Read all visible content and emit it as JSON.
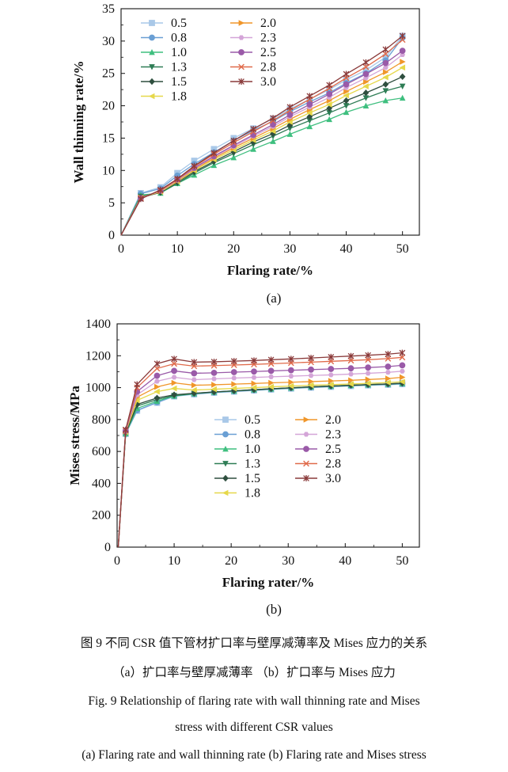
{
  "panel_labels": {
    "a": "(a)",
    "b": "(b)"
  },
  "captions": {
    "cn_title": "图 9   不同 CSR 值下管材扩口率与壁厚减薄率及 Mises 应力的关系",
    "cn_sub": "（a）扩口率与壁厚减薄率    （b）扩口率与 Mises 应力",
    "en_title_1": "Fig. 9   Relationship of flaring rate with wall thinning rate and Mises",
    "en_title_2": "stress with different CSR values",
    "en_sub": "(a) Flaring rate and wall thinning rate    (b) Flaring rate and Mises stress"
  },
  "series_style": [
    {
      "name": "0.5",
      "color": "#a9c8e8",
      "marker": "square"
    },
    {
      "name": "0.8",
      "color": "#6a9fd4",
      "marker": "circle"
    },
    {
      "name": "1.0",
      "color": "#3fbf7f",
      "marker": "triangle-up"
    },
    {
      "name": "1.3",
      "color": "#2e7d55",
      "marker": "triangle-down"
    },
    {
      "name": "1.5",
      "color": "#2f4f3f",
      "marker": "diamond"
    },
    {
      "name": "1.8",
      "color": "#e6d84a",
      "marker": "triangle-left"
    },
    {
      "name": "2.0",
      "color": "#f0962a",
      "marker": "triangle-right"
    },
    {
      "name": "2.3",
      "color": "#d4a5d8",
      "marker": "hexagon"
    },
    {
      "name": "2.5",
      "color": "#9a5aa8",
      "marker": "circle"
    },
    {
      "name": "2.8",
      "color": "#e06a4a",
      "marker": "x"
    },
    {
      "name": "3.0",
      "color": "#8a3a3a",
      "marker": "star"
    }
  ],
  "chart_data": [
    {
      "type": "line",
      "xlabel": "Flaring rate/%",
      "ylabel": "Wall thinning rate/%",
      "xlim": [
        0,
        53
      ],
      "ylim": [
        0,
        35
      ],
      "xticks": [
        0,
        10,
        20,
        30,
        40,
        50
      ],
      "yticks": [
        5,
        10,
        15,
        20,
        25,
        30,
        35
      ],
      "legend_position": "top-left",
      "x": [
        0,
        3.5,
        7,
        10,
        13,
        16.5,
        20,
        23.5,
        27,
        30,
        33.5,
        37,
        40,
        43.5,
        47,
        50
      ],
      "series": [
        {
          "name": "0.5",
          "values": [
            0,
            6.5,
            7.4,
            9.6,
            11.5,
            13.3,
            15.0,
            16.5,
            18.0,
            19.5,
            21.0,
            22.5,
            24.0,
            25.5,
            27.5,
            30.8
          ]
        },
        {
          "name": "0.8",
          "values": [
            0,
            6.4,
            7.2,
            9.2,
            11.0,
            12.8,
            14.6,
            16.2,
            17.6,
            19.1,
            20.6,
            22.0,
            23.5,
            25.0,
            27.0,
            30.5
          ]
        },
        {
          "name": "1.0",
          "values": [
            0,
            6.2,
            6.5,
            8.0,
            9.3,
            10.8,
            12.0,
            13.3,
            14.5,
            15.6,
            16.8,
            17.9,
            19.0,
            20.0,
            20.8,
            21.2
          ]
        },
        {
          "name": "1.3",
          "values": [
            0,
            6.0,
            6.6,
            8.0,
            9.6,
            11.2,
            12.6,
            14.0,
            15.3,
            16.5,
            17.7,
            18.9,
            20.0,
            21.2,
            22.3,
            23.0
          ]
        },
        {
          "name": "1.5",
          "values": [
            0,
            5.8,
            6.6,
            8.2,
            9.8,
            11.4,
            12.9,
            14.4,
            15.7,
            17.0,
            18.3,
            19.6,
            20.8,
            22.0,
            23.3,
            24.5
          ]
        },
        {
          "name": "1.8",
          "values": [
            0,
            5.8,
            6.7,
            8.3,
            10.0,
            11.7,
            13.2,
            14.7,
            16.1,
            17.5,
            18.9,
            20.2,
            21.6,
            23.0,
            24.4,
            25.9
          ]
        },
        {
          "name": "2.0",
          "values": [
            0,
            5.8,
            6.8,
            8.4,
            10.2,
            11.9,
            13.5,
            15.0,
            16.5,
            17.9,
            19.4,
            20.8,
            22.2,
            23.7,
            25.2,
            26.8
          ]
        },
        {
          "name": "2.3",
          "values": [
            0,
            5.8,
            6.8,
            8.5,
            10.3,
            12.1,
            13.7,
            15.3,
            16.8,
            18.3,
            19.8,
            21.3,
            22.8,
            24.3,
            25.9,
            27.9
          ]
        },
        {
          "name": "2.5",
          "values": [
            0,
            5.7,
            6.9,
            8.6,
            10.4,
            12.2,
            13.9,
            15.5,
            17.1,
            18.6,
            20.2,
            21.8,
            23.3,
            24.9,
            26.6,
            28.5
          ]
        },
        {
          "name": "2.8",
          "values": [
            0,
            5.7,
            6.9,
            8.6,
            10.6,
            12.5,
            14.3,
            16.0,
            17.7,
            19.3,
            21.0,
            22.7,
            24.3,
            26.0,
            28.0,
            30.2
          ]
        },
        {
          "name": "3.0",
          "values": [
            0,
            5.6,
            7.0,
            8.7,
            10.7,
            12.7,
            14.6,
            16.4,
            18.1,
            19.8,
            21.5,
            23.2,
            24.9,
            26.7,
            28.7,
            30.8
          ]
        }
      ]
    },
    {
      "type": "line",
      "xlabel": "Flaring rater/%",
      "ylabel": "Mises stress/MPa",
      "xlim": [
        0,
        53
      ],
      "ylim": [
        0,
        1400
      ],
      "xticks": [
        0,
        10,
        20,
        30,
        40,
        50
      ],
      "yticks": [
        200,
        400,
        600,
        800,
        1000,
        1200,
        1400
      ],
      "legend_position": "bottom-middle",
      "x": [
        0.2,
        1.5,
        3.5,
        7,
        10,
        13.5,
        17,
        20.5,
        24,
        27,
        30.5,
        34,
        37.5,
        41,
        44,
        47.5,
        50
      ],
      "series": [
        {
          "name": "0.5",
          "values": [
            0,
            710,
            855,
            905,
            945,
            958,
            968,
            975,
            982,
            988,
            994,
            1000,
            1005,
            1010,
            1014,
            1018,
            1022
          ]
        },
        {
          "name": "0.8",
          "values": [
            0,
            710,
            858,
            908,
            947,
            960,
            970,
            977,
            984,
            990,
            996,
            1002,
            1007,
            1012,
            1016,
            1020,
            1024
          ]
        },
        {
          "name": "1.0",
          "values": [
            0,
            712,
            870,
            915,
            948,
            962,
            972,
            979,
            986,
            992,
            998,
            1004,
            1009,
            1014,
            1018,
            1022,
            1026
          ]
        },
        {
          "name": "1.3",
          "values": [
            0,
            715,
            885,
            925,
            950,
            963,
            973,
            980,
            987,
            993,
            999,
            1005,
            1010,
            1015,
            1019,
            1023,
            1028
          ]
        },
        {
          "name": "1.5",
          "values": [
            0,
            718,
            895,
            935,
            955,
            965,
            973,
            980,
            987,
            993,
            999,
            1005,
            1010,
            1015,
            1019,
            1023,
            1028
          ]
        },
        {
          "name": "1.8",
          "values": [
            0,
            722,
            920,
            975,
            995,
            985,
            990,
            995,
            1000,
            1005,
            1010,
            1015,
            1019,
            1023,
            1027,
            1032,
            1037
          ]
        },
        {
          "name": "2.0",
          "values": [
            0,
            726,
            940,
            1005,
            1030,
            1015,
            1018,
            1022,
            1026,
            1030,
            1034,
            1038,
            1042,
            1046,
            1051,
            1057,
            1065
          ]
        },
        {
          "name": "2.3",
          "values": [
            0,
            728,
            955,
            1040,
            1065,
            1050,
            1055,
            1060,
            1064,
            1068,
            1072,
            1076,
            1080,
            1085,
            1090,
            1096,
            1103
          ]
        },
        {
          "name": "2.5",
          "values": [
            0,
            730,
            975,
            1075,
            1105,
            1090,
            1093,
            1097,
            1101,
            1105,
            1109,
            1113,
            1117,
            1121,
            1126,
            1132,
            1140
          ]
        },
        {
          "name": "2.8",
          "values": [
            0,
            733,
            1000,
            1120,
            1150,
            1135,
            1138,
            1142,
            1146,
            1150,
            1155,
            1160,
            1165,
            1170,
            1175,
            1182,
            1190
          ]
        },
        {
          "name": "3.0",
          "values": [
            0,
            736,
            1020,
            1150,
            1180,
            1160,
            1162,
            1166,
            1170,
            1175,
            1180,
            1186,
            1192,
            1198,
            1203,
            1210,
            1218
          ]
        }
      ]
    }
  ]
}
